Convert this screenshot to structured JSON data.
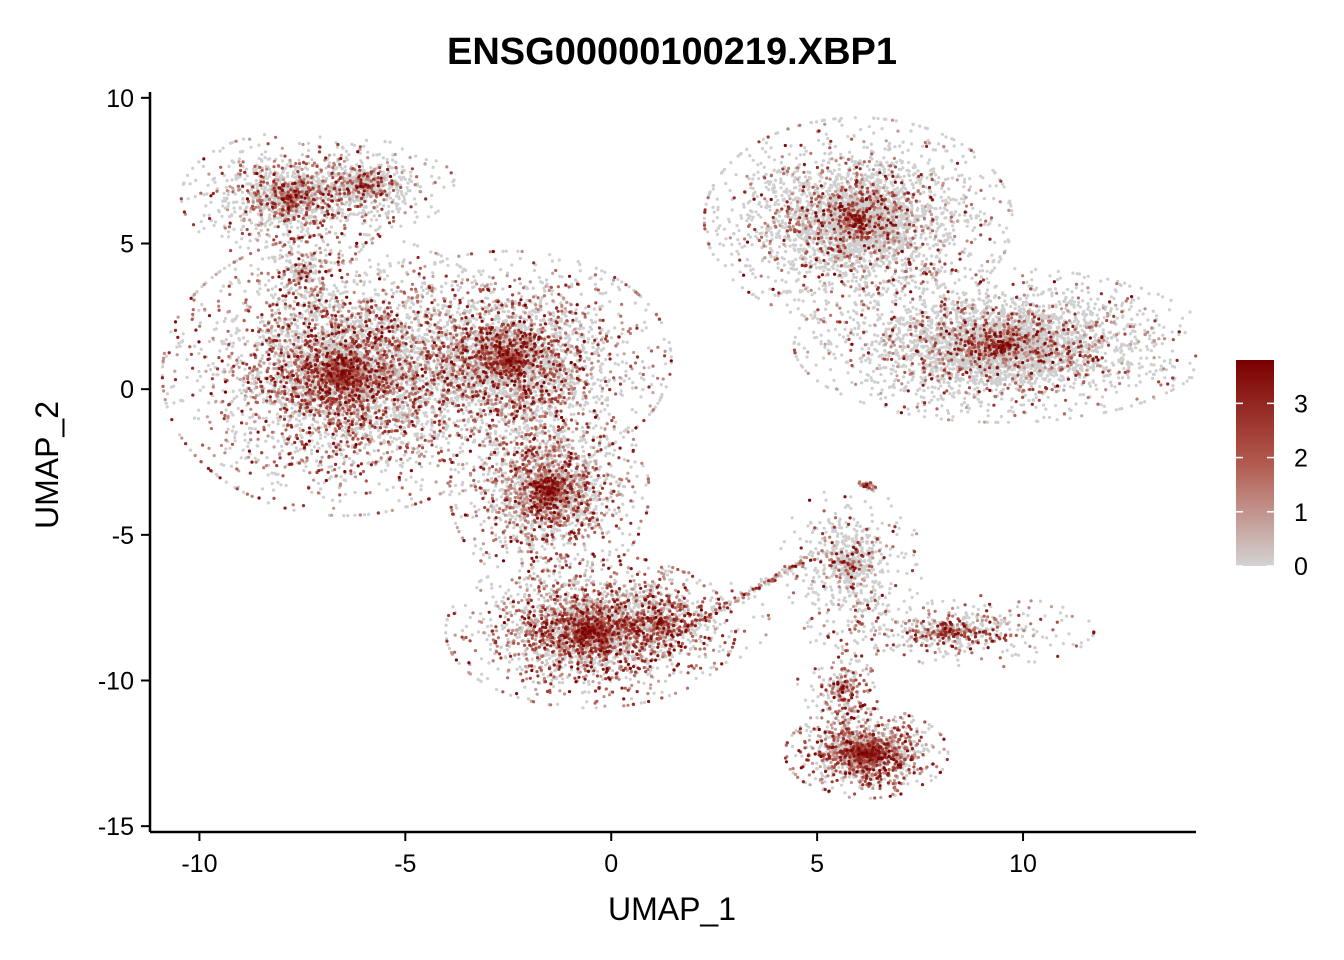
{
  "chart_data": {
    "type": "scatter",
    "title": "ENSG00000100219.XBP1",
    "xlabel": "UMAP_1",
    "ylabel": "UMAP_2",
    "xlim": [
      -11.2,
      14.2
    ],
    "ylim": [
      -15.2,
      10.2
    ],
    "x_ticks": [
      -10,
      -5,
      0,
      5,
      10
    ],
    "x_tick_labels": [
      "-10",
      "-5",
      "0",
      "5",
      "10"
    ],
    "y_ticks": [
      -15,
      -10,
      -5,
      0,
      5,
      10
    ],
    "y_tick_labels": [
      "-15",
      "-10",
      "-5",
      "0",
      "5",
      "10"
    ],
    "grid": false,
    "legend": {
      "placement": "right",
      "type": "colorbar",
      "min": 0,
      "max": 3.8,
      "ticks": [
        0,
        1,
        2,
        3
      ],
      "tick_labels": [
        "0",
        "1",
        "2",
        "3"
      ],
      "low_color": "#d3d3d3",
      "high_color": "#7a0000"
    },
    "clusters": [
      {
        "x": -7.8,
        "y": 6.6,
        "sx": 1.2,
        "sy": 1.0,
        "n": 1400,
        "expr": 0.3
      },
      {
        "x": -6.0,
        "y": 7.0,
        "sx": 1.0,
        "sy": 0.7,
        "n": 700,
        "expr": 0.25
      },
      {
        "x": -7.5,
        "y": 4.0,
        "sx": 0.6,
        "sy": 1.0,
        "n": 250,
        "expr": 0.2
      },
      {
        "x": -6.5,
        "y": 0.5,
        "sx": 2.0,
        "sy": 2.2,
        "n": 5500,
        "expr": 0.38
      },
      {
        "x": -2.5,
        "y": 1.0,
        "sx": 1.8,
        "sy": 1.7,
        "n": 4000,
        "expr": 0.35
      },
      {
        "x": -1.5,
        "y": -3.5,
        "sx": 1.1,
        "sy": 1.5,
        "n": 2500,
        "expr": 0.45
      },
      {
        "x": -0.5,
        "y": -8.3,
        "sx": 1.6,
        "sy": 1.2,
        "n": 3000,
        "expr": 0.52
      },
      {
        "x": 1.2,
        "y": -8.0,
        "sx": 1.2,
        "sy": 0.8,
        "n": 600,
        "expr": 0.45
      },
      {
        "x": 6.2,
        "y": -12.5,
        "sx": 0.9,
        "sy": 0.7,
        "n": 1800,
        "expr": 0.55
      },
      {
        "x": 5.6,
        "y": -10.3,
        "sx": 0.5,
        "sy": 0.9,
        "n": 300,
        "expr": 0.45
      },
      {
        "x": 5.8,
        "y": -6.0,
        "sx": 0.8,
        "sy": 1.2,
        "n": 700,
        "expr": 0.2
      },
      {
        "x": 8.2,
        "y": -8.3,
        "sx": 1.6,
        "sy": 0.6,
        "n": 650,
        "expr": 0.4
      },
      {
        "x": 6.0,
        "y": 5.8,
        "sx": 1.7,
        "sy": 1.6,
        "n": 4000,
        "expr": 0.22
      },
      {
        "x": 9.5,
        "y": 1.5,
        "sx": 2.3,
        "sy": 1.2,
        "n": 4500,
        "expr": 0.2
      },
      {
        "x": 6.2,
        "y": -3.3,
        "sx": 0.15,
        "sy": 0.12,
        "n": 40,
        "expr": 0.8
      }
    ],
    "bridge": {
      "from": [
        1.5,
        -8.5
      ],
      "to": [
        4.8,
        -5.8
      ],
      "n": 150,
      "expr": 0.4
    }
  }
}
